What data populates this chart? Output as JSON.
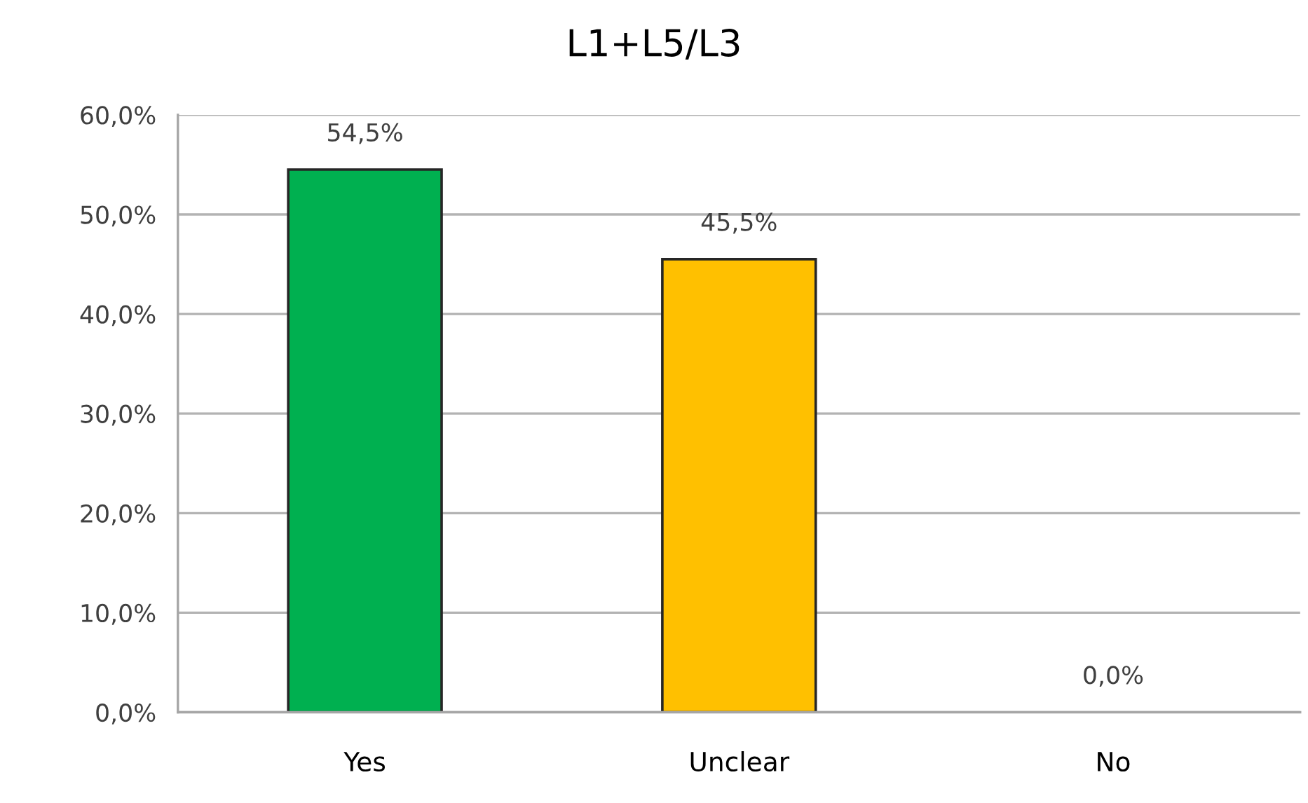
{
  "chart_data": {
    "type": "bar",
    "title": "L1+L5/L3",
    "categories": [
      "Yes",
      "Unclear",
      "No"
    ],
    "values": [
      54.5,
      45.5,
      0
    ],
    "colors": [
      "#00b050",
      "#ffc000",
      "#ff0000"
    ],
    "value_labels": [
      "54,5%",
      "45,5%",
      "0,0%"
    ],
    "ylim": [
      0,
      60
    ],
    "yticks": [
      {
        "value": 0,
        "label": "0,0%"
      },
      {
        "value": 10,
        "label": "10,0%"
      },
      {
        "value": 20,
        "label": "20,0%"
      },
      {
        "value": 30,
        "label": "30,0%"
      },
      {
        "value": 40,
        "label": "40,0%"
      },
      {
        "value": 50,
        "label": "50,0%"
      },
      {
        "value": 60,
        "label": "60,0%"
      }
    ],
    "grid": "y"
  }
}
